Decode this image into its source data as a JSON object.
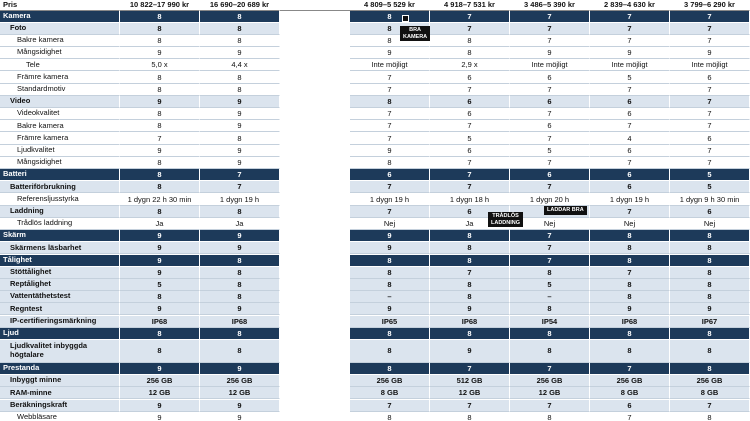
{
  "header": {
    "label": "Pris",
    "left": [
      "10 822–17 990 kr",
      "16 690–20 689 kr"
    ],
    "right": [
      "4 809–5 529 kr",
      "4 918–7 531 kr",
      "3 486–5 390 kr",
      "2 839–4 630 kr",
      "3 799–6 290 kr"
    ]
  },
  "rows": [
    {
      "label": "Kamera",
      "level": 0,
      "left": [
        "8",
        "8"
      ],
      "right": [
        "8",
        "7",
        "7",
        "7",
        "7"
      ]
    },
    {
      "label": "Foto",
      "level": 1,
      "left": [
        "8",
        "8"
      ],
      "right": [
        "8",
        "7",
        "7",
        "7",
        "7"
      ]
    },
    {
      "label": "Bakre kamera",
      "level": 2,
      "left": [
        "8",
        "8"
      ],
      "right": [
        "8",
        "8",
        "7",
        "7",
        "7"
      ]
    },
    {
      "label": "Mångsidighet",
      "level": 2,
      "left": [
        "9",
        "9"
      ],
      "right": [
        "9",
        "8",
        "9",
        "9",
        "9"
      ]
    },
    {
      "label": "Tele",
      "level": 3,
      "left": [
        "5,0 x",
        "4,4 x"
      ],
      "right": [
        "Inte möjligt",
        "2,9 x",
        "Inte möjligt",
        "Inte möjligt",
        "Inte möjligt"
      ]
    },
    {
      "label": "Främre kamera",
      "level": 2,
      "left": [
        "8",
        "8"
      ],
      "right": [
        "7",
        "6",
        "6",
        "5",
        "6"
      ]
    },
    {
      "label": "Standardmotiv",
      "level": 2,
      "left": [
        "8",
        "8"
      ],
      "right": [
        "7",
        "7",
        "7",
        "7",
        "7"
      ]
    },
    {
      "label": "Video",
      "level": 1,
      "left": [
        "9",
        "9"
      ],
      "right": [
        "8",
        "6",
        "6",
        "6",
        "7"
      ]
    },
    {
      "label": "Videokvalitet",
      "level": 2,
      "left": [
        "8",
        "9"
      ],
      "right": [
        "7",
        "6",
        "7",
        "6",
        "7"
      ]
    },
    {
      "label": "Bakre kamera",
      "level": 2,
      "left": [
        "8",
        "9"
      ],
      "right": [
        "7",
        "7",
        "6",
        "7",
        "7"
      ]
    },
    {
      "label": "Främre kamera",
      "level": 2,
      "left": [
        "7",
        "8"
      ],
      "right": [
        "7",
        "5",
        "7",
        "4",
        "6"
      ]
    },
    {
      "label": "Ljudkvalitet",
      "level": 2,
      "left": [
        "9",
        "9"
      ],
      "right": [
        "9",
        "6",
        "5",
        "6",
        "7"
      ]
    },
    {
      "label": "Mångsidighet",
      "level": 2,
      "left": [
        "8",
        "9"
      ],
      "right": [
        "8",
        "7",
        "7",
        "7",
        "7"
      ]
    },
    {
      "label": "Batteri",
      "level": 0,
      "left": [
        "8",
        "7"
      ],
      "right": [
        "6",
        "7",
        "6",
        "6",
        "5"
      ]
    },
    {
      "label": "Batteriförbrukning",
      "level": 1,
      "left": [
        "8",
        "7"
      ],
      "right": [
        "7",
        "7",
        "7",
        "6",
        "5"
      ]
    },
    {
      "label": "Referensljusstyrka",
      "level": 2,
      "left": [
        "1 dygn 22 h 30 min",
        "1 dygn 19 h"
      ],
      "right": [
        "1 dygn 19 h",
        "1 dygn 18 h",
        "1 dygn 20 h",
        "1 dygn 19 h",
        "1 dygn 9 h 30 min"
      ]
    },
    {
      "label": "Laddning",
      "level": 1,
      "left": [
        "8",
        "8"
      ],
      "right": [
        "7",
        "6",
        "9",
        "7",
        "6"
      ]
    },
    {
      "label": "Trådlös laddning",
      "level": 2,
      "left": [
        "Ja",
        "Ja"
      ],
      "right": [
        "Nej",
        "Ja",
        "Nej",
        "Nej",
        "Nej"
      ]
    },
    {
      "label": "Skärm",
      "level": 0,
      "left": [
        "9",
        "9"
      ],
      "right": [
        "9",
        "8",
        "7",
        "8",
        "8"
      ]
    },
    {
      "label": "Skärmens läsbarhet",
      "level": 1,
      "left": [
        "9",
        "9"
      ],
      "right": [
        "9",
        "8",
        "7",
        "8",
        "8"
      ]
    },
    {
      "label": "Tålighet",
      "level": 0,
      "left": [
        "9",
        "8"
      ],
      "right": [
        "8",
        "8",
        "7",
        "8",
        "8"
      ]
    },
    {
      "label": "Stöttålighet",
      "level": 1,
      "left": [
        "9",
        "8"
      ],
      "right": [
        "8",
        "7",
        "8",
        "7",
        "8"
      ]
    },
    {
      "label": "Reptålighet",
      "level": 1,
      "left": [
        "5",
        "8"
      ],
      "right": [
        "8",
        "8",
        "5",
        "8",
        "8"
      ]
    },
    {
      "label": "Vattentäthetstest",
      "level": 1,
      "left": [
        "8",
        "8"
      ],
      "right": [
        "–",
        "8",
        "–",
        "8",
        "8"
      ]
    },
    {
      "label": "Regntest",
      "level": 1,
      "left": [
        "9",
        "9"
      ],
      "right": [
        "9",
        "9",
        "8",
        "9",
        "9"
      ]
    },
    {
      "label": "IP-certifieringsmärkning",
      "level": 1,
      "left": [
        "IP68",
        "IP68"
      ],
      "right": [
        "IP65",
        "IP68",
        "IP54",
        "IP68",
        "IP67"
      ]
    },
    {
      "label": "Ljud",
      "level": 0,
      "left": [
        "8",
        "8"
      ],
      "right": [
        "8",
        "8",
        "8",
        "8",
        "8"
      ]
    },
    {
      "label": "Ljudkvalitet inbyggda högtalare",
      "level": 1,
      "left": [
        "8",
        "8"
      ],
      "right": [
        "8",
        "9",
        "8",
        "8",
        "8"
      ]
    },
    {
      "label": "Prestanda",
      "level": 0,
      "left": [
        "9",
        "9"
      ],
      "right": [
        "8",
        "7",
        "7",
        "7",
        "8"
      ]
    },
    {
      "label": "Inbyggt minne",
      "level": 1,
      "left": [
        "256 GB",
        "256 GB"
      ],
      "right": [
        "256 GB",
        "512 GB",
        "256 GB",
        "256 GB",
        "256 GB"
      ]
    },
    {
      "label": "RAM-minne",
      "level": 1,
      "left": [
        "12 GB",
        "12 GB"
      ],
      "right": [
        "8 GB",
        "12 GB",
        "12 GB",
        "8 GB",
        "8 GB"
      ]
    },
    {
      "label": "Beräkningskraft",
      "level": 1,
      "left": [
        "9",
        "9"
      ],
      "right": [
        "7",
        "7",
        "7",
        "6",
        "7"
      ]
    },
    {
      "label": "Webbläsare",
      "level": 2,
      "left": [
        "9",
        "9"
      ],
      "right": [
        "8",
        "8",
        "8",
        "7",
        "8"
      ]
    }
  ],
  "badges": [
    [
      "BRA",
      "KAMERA"
    ],
    [
      "LADDAR BRA"
    ],
    [
      "TRÅDLÖS",
      "LADDNING"
    ]
  ]
}
